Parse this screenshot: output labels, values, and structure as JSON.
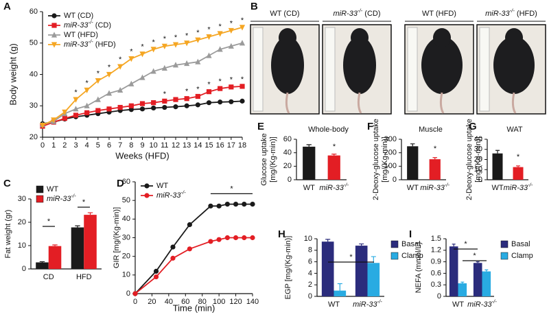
{
  "chart_data": [
    {
      "panel": "A",
      "type": "line",
      "xlabel": "Weeks (HFD)",
      "ylabel": "Body weight (g)",
      "x": [
        0,
        1,
        2,
        3,
        4,
        5,
        6,
        7,
        8,
        9,
        10,
        11,
        12,
        13,
        14,
        15,
        16,
        17,
        18
      ],
      "xlim": [
        0,
        18
      ],
      "xticks": [
        0,
        1,
        2,
        3,
        4,
        5,
        6,
        7,
        8,
        9,
        10,
        11,
        12,
        13,
        14,
        15,
        16,
        17,
        18
      ],
      "ylim": [
        20,
        60
      ],
      "yticks": [
        20,
        30,
        40,
        50,
        60
      ],
      "legend": "upper left",
      "significance_label": "*",
      "series": [
        {
          "name": "WT (CD)",
          "color": "#1a1a1a",
          "marker": "circle",
          "values": [
            24.3,
            24.8,
            25.8,
            26.5,
            27,
            27.5,
            28,
            28.5,
            28.8,
            29,
            29.3,
            29.5,
            29.7,
            30,
            30.3,
            31,
            31.2,
            31.3,
            31.5
          ]
        },
        {
          "name": "miR-33-/- (CD)",
          "color": "#e31e24",
          "marker": "square",
          "values": [
            23.5,
            24.8,
            26,
            27,
            27.8,
            28.5,
            29,
            29.5,
            30,
            30.7,
            31,
            31.5,
            32,
            32.3,
            33,
            34.5,
            35.5,
            36,
            36.2
          ],
          "significant_x": [
            11,
            13,
            14,
            15,
            16,
            17,
            18
          ]
        },
        {
          "name": "WT (HFD)",
          "color": "#9b9b9b",
          "marker": "triangle",
          "values": [
            24,
            25,
            27.5,
            29,
            30,
            32,
            34,
            35,
            37,
            39,
            41,
            42,
            43,
            43.5,
            44,
            46,
            48,
            49,
            50
          ]
        },
        {
          "name": "miR-33-/- (HFD)",
          "color": "#f5a623",
          "marker": "triangle-down",
          "values": [
            23.8,
            25.5,
            28,
            32,
            35,
            38,
            40,
            42.5,
            45,
            46.5,
            48,
            49,
            49.5,
            50,
            51,
            52,
            53,
            54,
            55
          ],
          "significant_x": [
            3,
            4,
            5,
            6,
            7,
            8,
            9,
            10,
            11,
            12,
            13,
            14,
            15,
            16,
            17,
            18
          ]
        }
      ]
    },
    {
      "panel": "C",
      "type": "bar",
      "ylabel": "Fat weight (gr)",
      "categories": [
        "CD",
        "HFD"
      ],
      "ylim": [
        0,
        30
      ],
      "yticks": [
        0,
        10,
        20,
        30
      ],
      "legend": "upper left",
      "series": [
        {
          "name": "WT",
          "color": "#1a1a1a",
          "values": [
            2.8,
            17.8
          ],
          "errors": [
            0.3,
            0.7
          ]
        },
        {
          "name": "miR-33-/-",
          "color": "#e31e24",
          "values": [
            9.8,
            23.2
          ],
          "errors": [
            0.5,
            0.9
          ]
        }
      ],
      "annotations": [
        {
          "text": "*"
        },
        {
          "text": "*"
        }
      ]
    },
    {
      "panel": "D",
      "type": "line",
      "xlabel": "Time (min)",
      "ylabel": "GIR [mg/(Kg-min)]",
      "x": [
        0,
        25,
        45,
        65,
        90,
        100,
        110,
        120,
        130,
        140
      ],
      "xlim": [
        0,
        140
      ],
      "xticks": [
        0,
        20,
        40,
        60,
        80,
        100,
        120,
        140
      ],
      "ylim": [
        0,
        60
      ],
      "yticks": [
        0,
        10,
        20,
        30,
        40,
        50,
        60
      ],
      "legend": "upper left",
      "series": [
        {
          "name": "WT",
          "color": "#1a1a1a",
          "marker": "circle",
          "values": [
            0,
            12,
            25,
            37,
            47,
            47,
            48,
            48,
            48,
            48
          ]
        },
        {
          "name": "miR-33-/-",
          "color": "#e31e24",
          "marker": "circle",
          "values": [
            0,
            9,
            19,
            24,
            28,
            29,
            30,
            30,
            30,
            30
          ]
        }
      ],
      "annotations": [
        {
          "text": "*"
        }
      ]
    },
    {
      "panel": "E",
      "type": "bar",
      "title": "Whole-body",
      "ylabel": [
        "Glucose uptake",
        "[mg/(Kg-min)]"
      ],
      "categories": [
        "WT",
        "miR-33-/-"
      ],
      "values": [
        49,
        36
      ],
      "errors": [
        3,
        2
      ],
      "colors": [
        "#1a1a1a",
        "#e31e24"
      ],
      "ylim": [
        0,
        60
      ],
      "yticks": [
        0,
        20,
        40,
        60
      ],
      "annotations": [
        {
          "text": "*"
        }
      ]
    },
    {
      "panel": "F",
      "type": "bar",
      "title": "Muscle",
      "ylabel": [
        "2-Deoxy-glucose uptake",
        "[mg/(Kg-min)]"
      ],
      "categories": [
        "WT",
        "miR-33-/-"
      ],
      "values": [
        248,
        152
      ],
      "errors": [
        18,
        12
      ],
      "colors": [
        "#1a1a1a",
        "#e31e24"
      ],
      "ylim": [
        0,
        300
      ],
      "yticks": [
        0,
        100,
        200,
        300
      ],
      "annotations": [
        {
          "text": "*"
        }
      ]
    },
    {
      "panel": "G",
      "type": "bar",
      "title": "WAT",
      "ylabel": [
        "2-Deoxy-glucose uptake",
        "[mg/(Kg-min)]"
      ],
      "categories": [
        "WT",
        "miR-33-/-"
      ],
      "values": [
        26,
        12.5
      ],
      "errors": [
        3,
        1.2
      ],
      "colors": [
        "#1a1a1a",
        "#e31e24"
      ],
      "ylim": [
        0,
        40
      ],
      "yticks": [
        0,
        10,
        20,
        30,
        40
      ],
      "annotations": [
        {
          "text": "*"
        }
      ]
    },
    {
      "panel": "H",
      "type": "bar",
      "ylabel": "EGP [mg/(Kg-min)]",
      "categories": [
        "WT",
        "miR-33-/-"
      ],
      "ylim": [
        0,
        10
      ],
      "yticks": [
        0,
        2,
        4,
        6,
        8,
        10
      ],
      "legend": "right",
      "series": [
        {
          "name": "Basal",
          "color": "#2b2c7c",
          "values": [
            9.5,
            8.8
          ],
          "errors": [
            0.4,
            0.3
          ]
        },
        {
          "name": "Clamp",
          "color": "#29abe2",
          "values": [
            1.0,
            5.8
          ],
          "errors": [
            1.2,
            1.1
          ]
        }
      ],
      "annotations": [
        {
          "text": "*"
        }
      ]
    },
    {
      "panel": "I",
      "type": "bar",
      "ylabel": "NEFA (mmol/L)",
      "categories": [
        "WT",
        "miR-33-/-"
      ],
      "ylim": [
        0,
        1.5
      ],
      "yticks": [
        0,
        0.3,
        0.6,
        0.9,
        1.2,
        1.5
      ],
      "legend": "right",
      "series": [
        {
          "name": "Basal",
          "color": "#2b2c7c",
          "values": [
            1.3,
            0.87
          ],
          "errors": [
            0.06,
            0.03
          ]
        },
        {
          "name": "Clamp",
          "color": "#29abe2",
          "values": [
            0.34,
            0.65
          ],
          "errors": [
            0.03,
            0.04
          ]
        }
      ],
      "annotations": [
        {
          "text": "*"
        },
        {
          "text": "*"
        }
      ]
    }
  ],
  "photo_panel": {
    "panel": "B",
    "labels": [
      "WT (CD)",
      "miR-33-/- (CD)",
      "WT (HFD)",
      "miR-33-/- (HFD)"
    ]
  }
}
